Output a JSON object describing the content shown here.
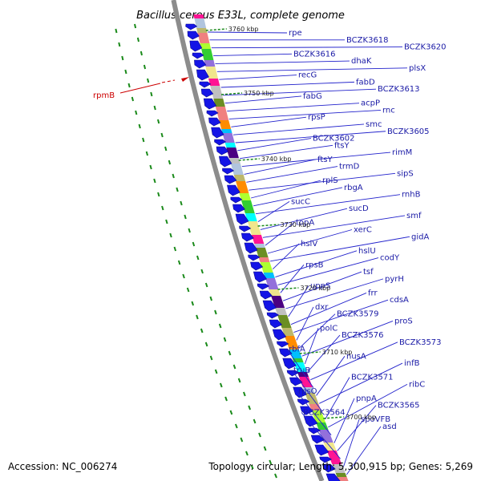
{
  "title": "Bacillus cereus E33L, complete genome",
  "footer": {
    "accession": "Accession: NC_006274",
    "summary": "Topology: circular; Length: 5,300,915 bp; Genes: 5,269"
  },
  "highlight_label": "rpmB",
  "kbp_marks": [
    "3760 kbp",
    "3750 kbp",
    "3740 kbp",
    "3730 kbp",
    "3720 kbp",
    "3710 kbp",
    "3700 kbp"
  ],
  "gene_labels": [
    "rpe",
    "BCZK3618",
    "BCZK3620",
    "BCZK3616",
    "dhaK",
    "plsX",
    "recG",
    "fabD",
    "BCZK3613",
    "fabG",
    "acpP",
    "rnc",
    "rpsP",
    "smc",
    "BCZK3605",
    "BCZK3602",
    "ftsY",
    "rimM",
    "ftsY",
    "trmD",
    "sipS",
    "rplS",
    "rbgA",
    "rnhB",
    "sucC",
    "sucD",
    "smf",
    "topA",
    "xerC",
    "gidA",
    "hslV",
    "hslU",
    "codY",
    "rpsB",
    "tsf",
    "pyrH",
    "uppS",
    "frr",
    "cdsA",
    "dxr",
    "BCZK3579",
    "proS",
    "polC",
    "BCZK3576",
    "BCZK3573",
    "rbfA",
    "nusA",
    "infB",
    "truB",
    "BCZK3571",
    "ribC",
    "rpsO",
    "pnpA",
    "BCZK3565",
    "BCZK3564",
    "spoVFB",
    "asd"
  ],
  "colors": {
    "gene_arrow": "#1414e6",
    "label_text": "#1a1aa6",
    "leader_line": "#2222cc",
    "backbone": "#8c8c8c",
    "dotted_ring": "#1a8a1a",
    "highlight": "#cc0000",
    "cog_palette": [
      "#ff1493",
      "#f08080",
      "#9370db",
      "#c0c0c0",
      "#ff8c00",
      "#00ffff",
      "#b0c4de",
      "#adff2f",
      "#f0e68c",
      "#6b8e23",
      "#00bfff",
      "#4b0082",
      "#bdb76b",
      "#32cd32"
    ]
  }
}
